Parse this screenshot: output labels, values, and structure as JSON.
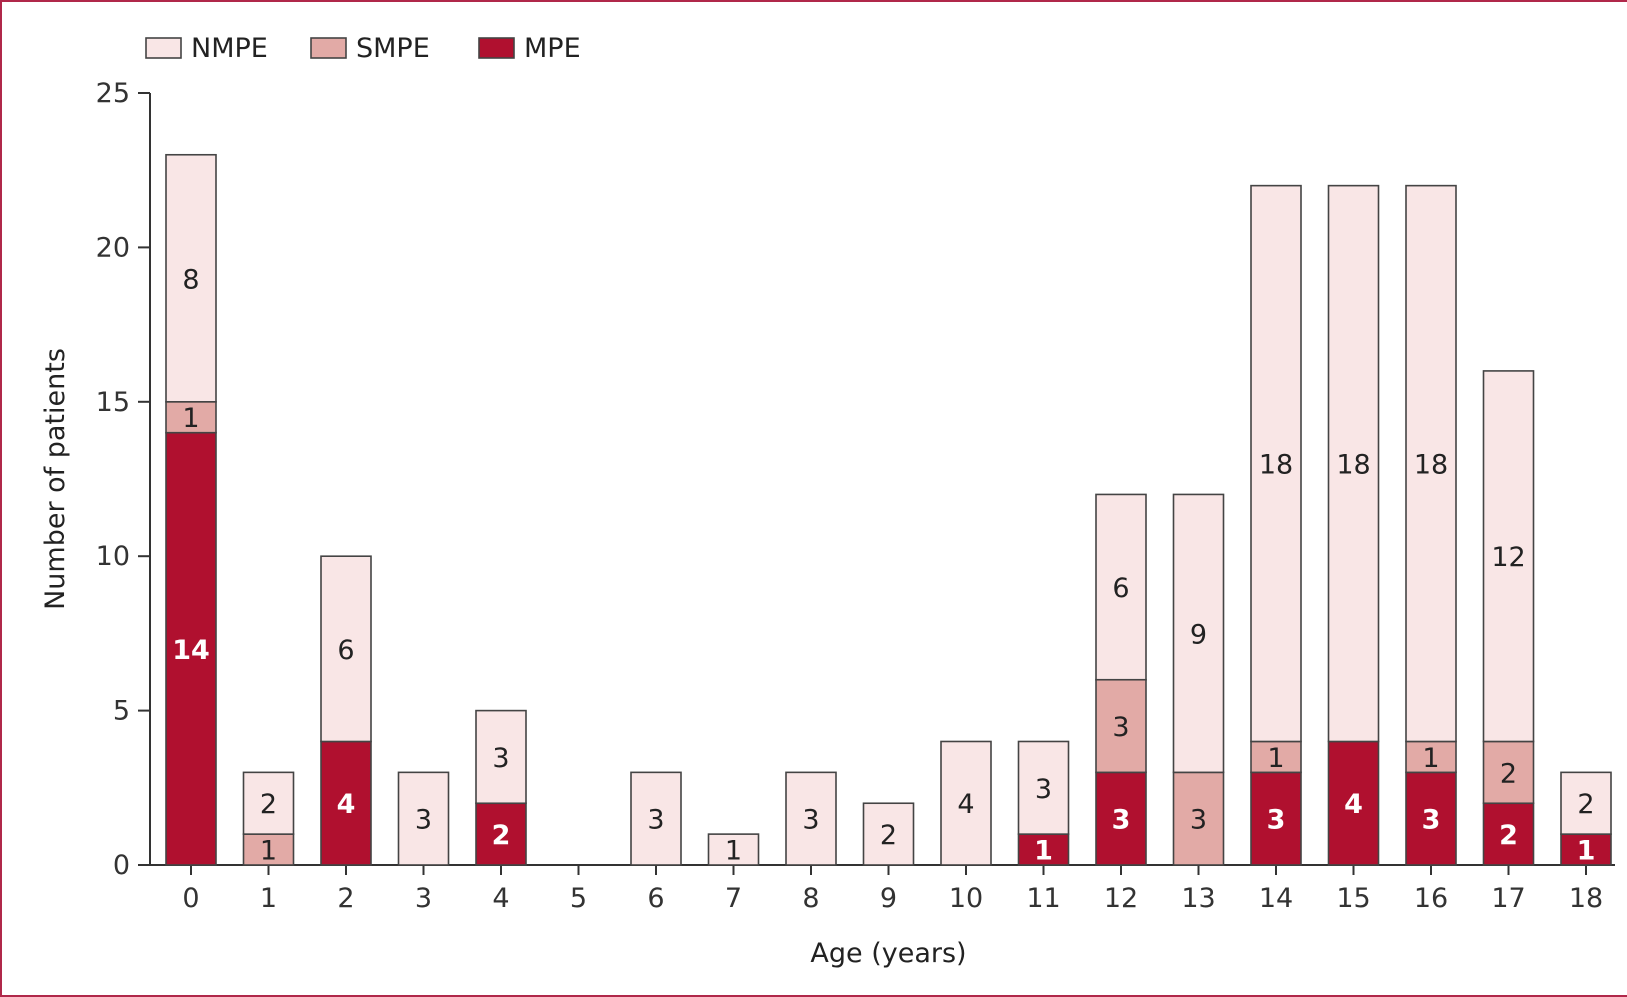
{
  "chart_data": {
    "type": "bar",
    "stacked": true,
    "xlabel": "Age (years)",
    "ylabel": "Number of patients",
    "ylim": [
      0,
      25
    ],
    "yticks": [
      0,
      5,
      10,
      15,
      20,
      25
    ],
    "grid": false,
    "legend_position": "top-left",
    "categories": [
      "0",
      "1",
      "2",
      "3",
      "4",
      "5",
      "6",
      "7",
      "8",
      "9",
      "10",
      "11",
      "12",
      "13",
      "14",
      "15",
      "16",
      "17",
      "18"
    ],
    "series": [
      {
        "name": "MPE",
        "color": "#b0102f",
        "label_color": "#ffffff",
        "label_bold": true,
        "values": [
          14,
          0,
          4,
          0,
          2,
          0,
          0,
          0,
          0,
          0,
          0,
          1,
          3,
          0,
          3,
          4,
          3,
          2,
          1
        ]
      },
      {
        "name": "SMPE",
        "color": "#e2aaa6",
        "label_color": "#222222",
        "label_bold": false,
        "values": [
          1,
          1,
          0,
          0,
          0,
          0,
          0,
          0,
          0,
          0,
          0,
          0,
          3,
          3,
          1,
          0,
          1,
          2,
          0
        ]
      },
      {
        "name": "NMPE",
        "color": "#f9e6e6",
        "label_color": "#222222",
        "label_bold": false,
        "values": [
          8,
          2,
          6,
          3,
          3,
          0,
          3,
          1,
          3,
          2,
          4,
          3,
          6,
          9,
          18,
          18,
          18,
          12,
          2
        ]
      }
    ],
    "legend_order": [
      "NMPE",
      "SMPE",
      "MPE"
    ]
  }
}
